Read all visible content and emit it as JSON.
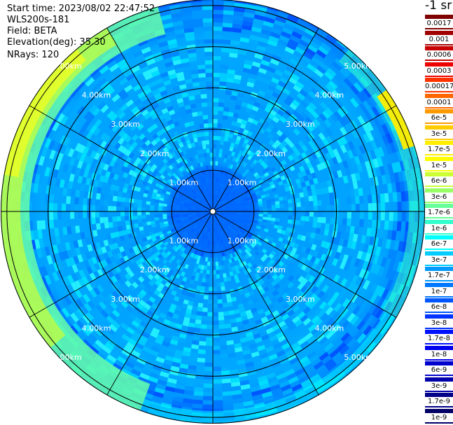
{
  "header": {
    "start_time": "Start time: 2023/08/02 22:47:52",
    "device": "WLS200s-181",
    "field": "Field: BETA",
    "elevation": "Elevation(deg): 35.30",
    "nrays": "NRays: 120"
  },
  "colorbar": {
    "unit": "-1 sr",
    "labels": [
      "0.0017",
      "0.001",
      "0.0006",
      "0.0003",
      "0.00017",
      "0.0001",
      "6e-5",
      "3e-5",
      "1.7e-5",
      "1e-5",
      "6e-6",
      "3e-6",
      "1.7e-6",
      "1e-6",
      "6e-7",
      "3e-7",
      "1.7e-7",
      "1e-7",
      "6e-8",
      "3e-8",
      "1.7e-8",
      "1e-8",
      "6e-9",
      "3e-9",
      "1.7e-9",
      "1e-9"
    ],
    "colors": [
      "#800000",
      "#a00000",
      "#c80000",
      "#ee0000",
      "#ff3300",
      "#ff6600",
      "#ff9900",
      "#ffcc00",
      "#ffee00",
      "#ffff00",
      "#ccff33",
      "#99ff66",
      "#66ff99",
      "#33ffcc",
      "#00ffff",
      "#00ccff",
      "#0099ff",
      "#0077ff",
      "#0055ff",
      "#0033ff",
      "#0011ff",
      "#0000ee",
      "#0000cc",
      "#0000aa",
      "#000088",
      "#000066"
    ]
  },
  "chart_data": {
    "type": "heatmap",
    "projection": "polar-ppi",
    "field": "BETA",
    "elevation_deg": 35.3,
    "nrays": 120,
    "range_rings_km": [
      {
        "range_km": 1,
        "label": "1.00km"
      },
      {
        "range_km": 2,
        "label": "2.00km"
      },
      {
        "range_km": 3,
        "label": "3.00km"
      },
      {
        "range_km": 4,
        "label": "4.00km"
      },
      {
        "range_km": 5,
        "label": "5.00km"
      }
    ],
    "max_range_km": 5.15,
    "spokes_deg": [
      0,
      30,
      60,
      90,
      120,
      150,
      180,
      210,
      240,
      270,
      300,
      330
    ],
    "backscatter_profile": [
      {
        "range_km": 0.5,
        "value": "1.7e-8"
      },
      {
        "range_km": 1.5,
        "value": "1e-7"
      },
      {
        "range_km": 2.5,
        "value": "1e-7"
      },
      {
        "range_km": 3.5,
        "value": "1e-7"
      },
      {
        "range_km": 4.5,
        "value": "1.7e-7"
      },
      {
        "range_km": 5.0,
        "value": "1e-6"
      }
    ]
  }
}
